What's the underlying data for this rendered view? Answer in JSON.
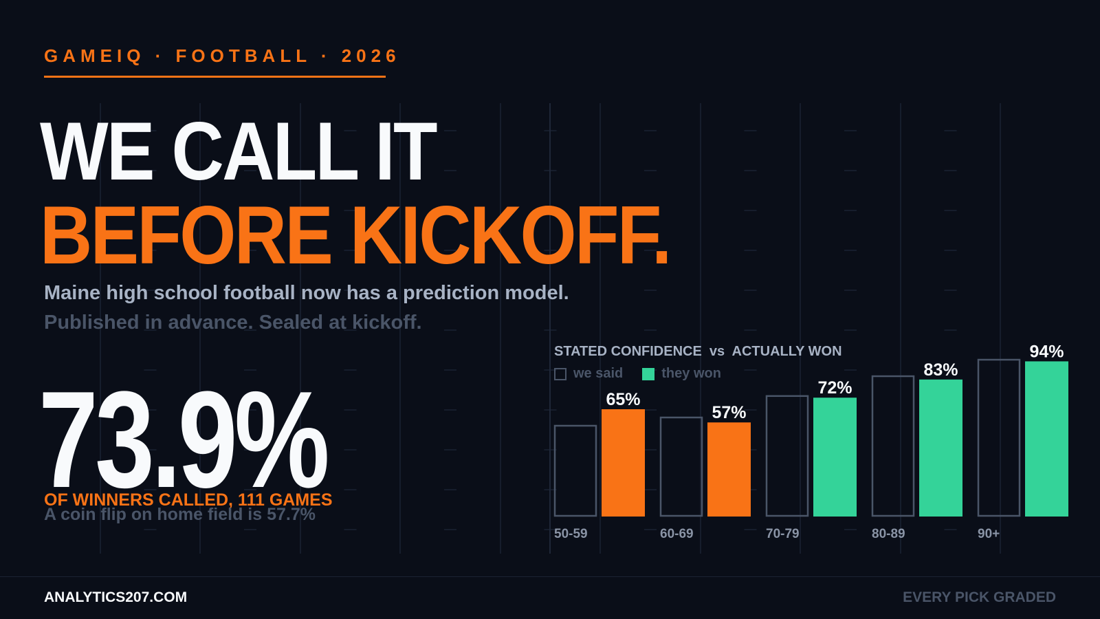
{
  "header": {
    "eyebrow": "GAMEIQ · FOOTBALL · 2026",
    "headline_line1": "WE CALL IT",
    "headline_line2": "BEFORE KICKOFF.",
    "subline1": "Maine high school football now has a prediction model.",
    "subline2": "Published in advance. Sealed at kickoff."
  },
  "stat": {
    "value": "73.9%",
    "label": "OF WINNERS CALLED, 111 GAMES",
    "note": "A coin flip on home field is 57.7%"
  },
  "chart_data": {
    "type": "bar",
    "title": "STATED CONFIDENCE  vs  ACTUALLY WON",
    "legend": [
      "we said",
      "they won"
    ],
    "legend_placement": "top-left",
    "categories": [
      "50-59",
      "60-69",
      "70-79",
      "80-89",
      "90+"
    ],
    "series": [
      {
        "name": "we said",
        "values": [
          55,
          60,
          73,
          85,
          95
        ],
        "style": "outline"
      },
      {
        "name": "they won",
        "values": [
          65,
          57,
          72,
          83,
          94
        ],
        "labels": [
          "65%",
          "57%",
          "72%",
          "83%",
          "94%"
        ]
      }
    ],
    "ylim": [
      0,
      100
    ],
    "grid": false
  },
  "colors": {
    "background": "#0a0e18",
    "accent_orange": "#f97316",
    "accent_green": "#34d399",
    "outline_gray": "#4a5568",
    "text_white": "#f8fafc"
  },
  "footer": {
    "left": "ANALYTICS207.COM",
    "right": "EVERY PICK GRADED"
  }
}
